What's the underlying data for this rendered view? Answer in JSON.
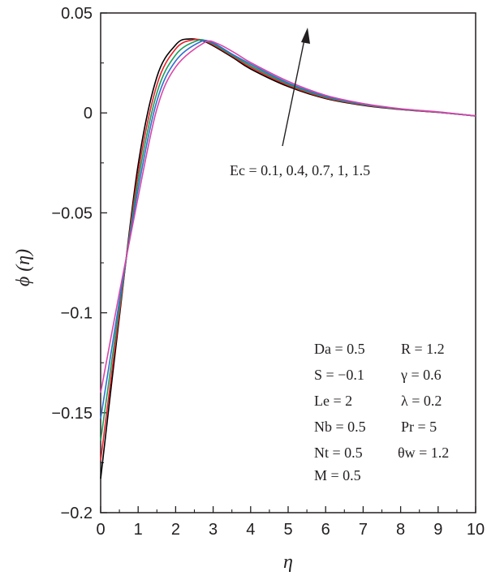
{
  "chart_data": {
    "type": "line",
    "xlabel": "η",
    "ylabel": "ϕ (η)",
    "xlim": [
      0,
      10
    ],
    "ylim": [
      -0.2,
      0.05
    ],
    "x_ticks": [
      "0",
      "1",
      "2",
      "3",
      "4",
      "5",
      "6",
      "7",
      "8",
      "9",
      "10"
    ],
    "y_ticks": [
      "0.05",
      "0",
      "−0.05",
      "−0.1",
      "−0.15",
      "−0.2"
    ],
    "grid": false,
    "series": [
      {
        "color": "#000000",
        "x": [
          0,
          0.5,
          1,
          1.5,
          2,
          2.35,
          2.8,
          3.5,
          4,
          5,
          6,
          7,
          8,
          9,
          10
        ],
        "y": [
          -0.183,
          -0.102,
          -0.026,
          0.018,
          0.034,
          0.037,
          0.0355,
          0.028,
          0.022,
          0.0132,
          0.0072,
          0.0038,
          0.0017,
          0.0003,
          -0.0015
        ]
      },
      {
        "color": "#e8202a",
        "x": [
          0,
          0.5,
          1,
          1.5,
          2,
          2.45,
          2.85,
          3.5,
          4,
          5,
          6,
          7,
          8,
          9,
          10
        ],
        "y": [
          -0.174,
          -0.1,
          -0.03,
          0.014,
          0.032,
          0.0365,
          0.0355,
          0.0285,
          0.0228,
          0.0138,
          0.0075,
          0.004,
          0.0018,
          0.0003,
          -0.0015
        ]
      },
      {
        "color": "#1a9e5a",
        "x": [
          0,
          0.5,
          1,
          1.5,
          2,
          2.55,
          2.9,
          3.5,
          4,
          5,
          6,
          7,
          8,
          9,
          10
        ],
        "y": [
          -0.164,
          -0.097,
          -0.034,
          0.01,
          0.029,
          0.036,
          0.0355,
          0.029,
          0.0236,
          0.0144,
          0.0079,
          0.0042,
          0.0019,
          0.0004,
          -0.0015
        ]
      },
      {
        "color": "#2f6fd0",
        "x": [
          0,
          0.5,
          1,
          1.5,
          2,
          2.65,
          3.0,
          3.5,
          4,
          5,
          6,
          7,
          8,
          9,
          10
        ],
        "y": [
          -0.153,
          -0.094,
          -0.038,
          0.006,
          0.026,
          0.0355,
          0.035,
          0.0295,
          0.0244,
          0.015,
          0.0083,
          0.0044,
          0.002,
          0.0004,
          -0.0015
        ]
      },
      {
        "color": "#d946a8",
        "x": [
          0,
          0.5,
          1,
          1.5,
          2,
          2.75,
          3.1,
          3.6,
          4,
          5,
          6,
          7,
          8,
          9,
          10
        ],
        "y": [
          -0.14,
          -0.09,
          -0.042,
          0.002,
          0.023,
          0.035,
          0.0348,
          0.0298,
          0.0252,
          0.0158,
          0.0088,
          0.0047,
          0.0021,
          0.0005,
          -0.0015
        ]
      }
    ],
    "annotations": {
      "ec_label": "Ec = 0.1, 0.4, 0.7, 1, 1.5",
      "params_left": [
        "Da = 0.5",
        "S = −0.1",
        "Le = 2",
        "Nb = 0.5",
        "Nt = 0.5",
        "M = 0.5"
      ],
      "params_right": [
        "R = 1.2",
        "γ = 0.6",
        "λ = 0.2",
        "Pr = 5",
        "θw = 1.2"
      ]
    }
  }
}
